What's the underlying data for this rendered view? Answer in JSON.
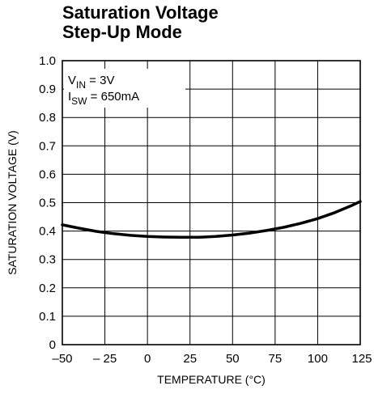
{
  "chart_data": {
    "type": "line",
    "title": "Saturation Voltage",
    "subtitle": "Step-Up Mode",
    "xlabel": "TEMPERATURE (°C)",
    "ylabel": "SATURATION VOLTAGE (V)",
    "xlim": [
      -50,
      125
    ],
    "ylim": [
      0,
      1.0
    ],
    "x_ticks": [
      -50,
      -25,
      0,
      25,
      50,
      75,
      100,
      125
    ],
    "x_tick_labels": [
      "–50",
      "– 25",
      "0",
      "25",
      "50",
      "75",
      "100",
      "125"
    ],
    "y_ticks": [
      0,
      0.1,
      0.2,
      0.3,
      0.4,
      0.5,
      0.6,
      0.7,
      0.8,
      0.9,
      1.0
    ],
    "y_tick_labels": [
      "0",
      "0.1",
      "0.2",
      "0.3",
      "0.4",
      "0.5",
      "0.6",
      "0.7",
      "0.8",
      "0.9",
      "1.0"
    ],
    "grid": true,
    "annotations": [
      {
        "base": "V",
        "sub": "IN",
        "rest": " = 3V"
      },
      {
        "base": "I",
        "sub": "SW",
        "rest": " = 650mA"
      }
    ],
    "series": [
      {
        "x": [
          -50,
          -40,
          -30,
          -20,
          -10,
          0,
          10,
          20,
          30,
          40,
          50,
          60,
          70,
          80,
          90,
          100,
          110,
          120,
          125
        ],
        "y": [
          0.422,
          0.41,
          0.399,
          0.391,
          0.385,
          0.381,
          0.379,
          0.378,
          0.378,
          0.381,
          0.386,
          0.393,
          0.402,
          0.413,
          0.427,
          0.444,
          0.465,
          0.49,
          0.504
        ],
        "color": "#000000"
      }
    ]
  }
}
